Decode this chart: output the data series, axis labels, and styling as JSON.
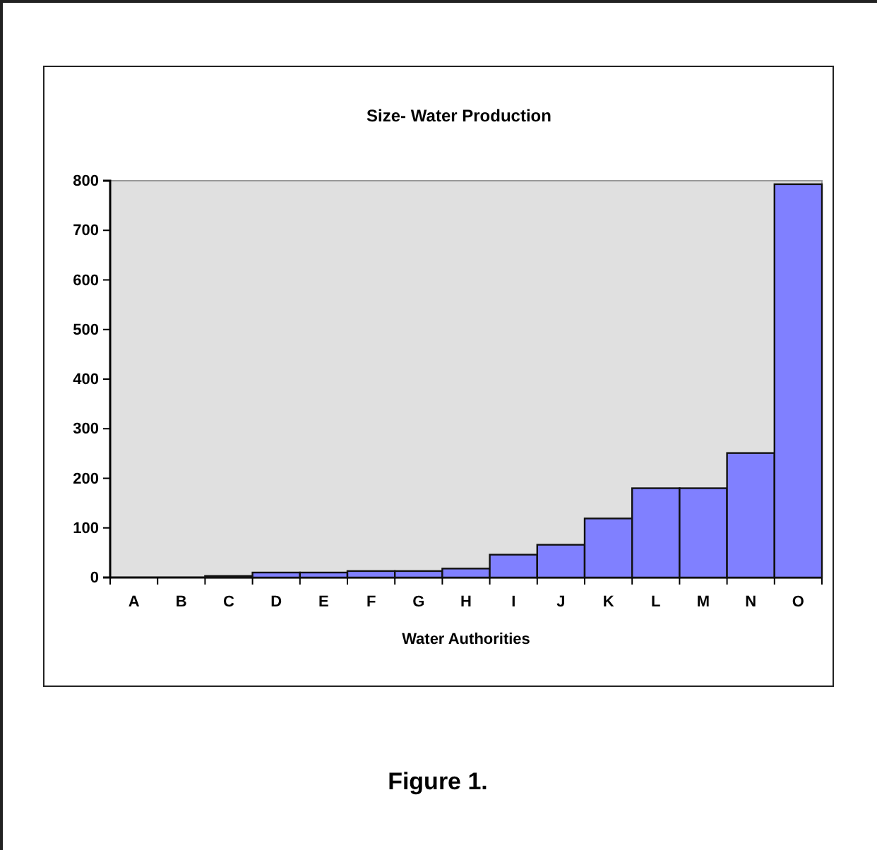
{
  "chart_data": {
    "type": "bar",
    "title": "Size- Water Production",
    "xlabel": "Water Authorities",
    "categories": [
      "A",
      "B",
      "C",
      "D",
      "E",
      "F",
      "G",
      "H",
      "I",
      "J",
      "K",
      "L",
      "M",
      "N",
      "O"
    ],
    "values": [
      0,
      0,
      3,
      10,
      10,
      13,
      13,
      18,
      46,
      66,
      119,
      180,
      180,
      251,
      793
    ],
    "color": "#8080ff",
    "ylim": [
      0,
      800
    ],
    "yticks": [
      0,
      100,
      200,
      300,
      400,
      500,
      600,
      700,
      800
    ],
    "grid": false,
    "annotations": [
      "Figure 1."
    ]
  }
}
